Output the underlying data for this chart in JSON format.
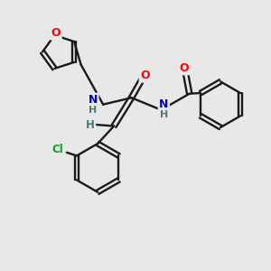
{
  "bg_color": "#e8e8e8",
  "bond_color": "#1a1a1a",
  "atom_colors": {
    "O": "#ff0000",
    "N": "#0000cc",
    "Cl": "#00aa00",
    "H": "#4a7a7a",
    "C": "#1a1a1a"
  }
}
